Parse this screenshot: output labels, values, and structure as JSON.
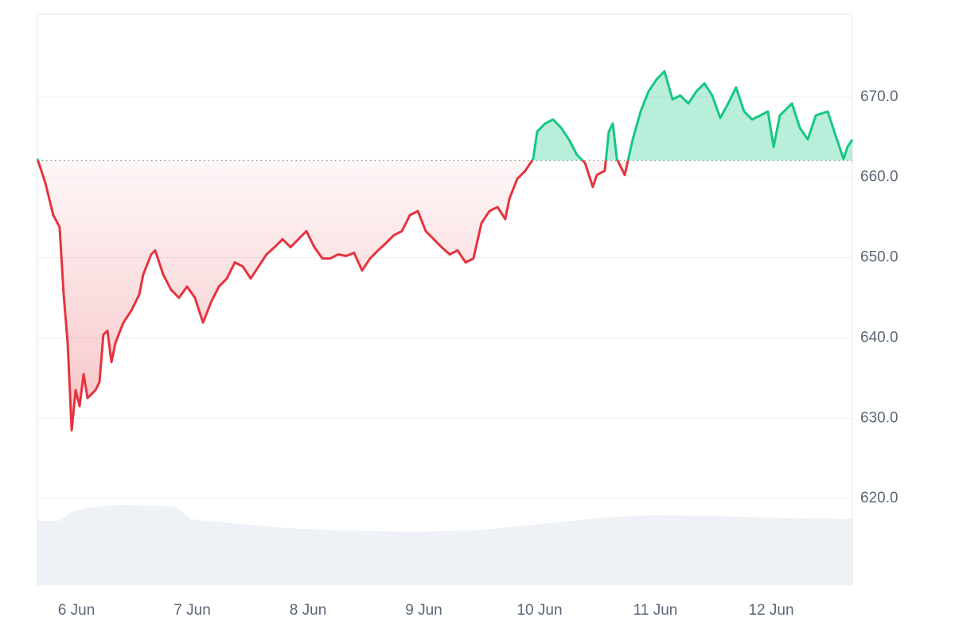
{
  "chart_data": {
    "type": "line",
    "x": [
      5.663,
      5.732,
      5.8,
      5.855,
      5.89,
      5.924,
      5.959,
      5.993,
      6.027,
      6.062,
      6.096,
      6.165,
      6.199,
      6.233,
      6.268,
      6.302,
      6.337,
      6.405,
      6.474,
      6.543,
      6.577,
      6.646,
      6.68,
      6.749,
      6.818,
      6.886,
      6.955,
      7.024,
      7.093,
      7.161,
      7.23,
      7.299,
      7.368,
      7.436,
      7.505,
      7.574,
      7.642,
      7.711,
      7.78,
      7.849,
      7.917,
      7.986,
      8.055,
      8.124,
      8.192,
      8.261,
      8.33,
      8.398,
      8.467,
      8.536,
      8.605,
      8.673,
      8.742,
      8.811,
      8.88,
      8.948,
      9.017,
      9.086,
      9.154,
      9.223,
      9.292,
      9.361,
      9.429,
      9.498,
      9.567,
      9.636,
      9.704,
      9.739,
      9.807,
      9.876,
      9.945,
      9.979,
      10.048,
      10.117,
      10.185,
      10.254,
      10.323,
      10.392,
      10.46,
      10.495,
      10.563,
      10.598,
      10.632,
      10.667,
      10.735,
      10.804,
      10.873,
      10.941,
      11.01,
      11.079,
      11.148,
      11.216,
      11.285,
      11.354,
      11.423,
      11.491,
      11.56,
      11.629,
      11.697,
      11.766,
      11.835,
      11.904,
      11.972,
      12.021,
      12.075,
      12.179,
      12.247,
      12.316,
      12.385,
      12.488,
      12.557,
      12.625,
      12.66,
      12.701
    ],
    "values": [
      662.3,
      659.3,
      655.3,
      653.8,
      645.4,
      639.4,
      628.5,
      633.5,
      631.5,
      635.5,
      632.5,
      633.5,
      634.5,
      640.4,
      640.9,
      637.0,
      639.4,
      641.9,
      643.4,
      645.4,
      647.9,
      650.4,
      650.9,
      647.9,
      646.0,
      645.0,
      646.4,
      645.0,
      641.9,
      644.4,
      646.4,
      647.4,
      649.4,
      648.9,
      647.4,
      648.9,
      650.4,
      651.3,
      652.3,
      651.3,
      652.3,
      653.3,
      651.3,
      649.9,
      649.9,
      650.4,
      650.2,
      650.6,
      648.4,
      649.9,
      650.9,
      651.8,
      652.8,
      653.3,
      655.3,
      655.8,
      653.3,
      652.3,
      651.3,
      650.4,
      650.9,
      649.4,
      649.9,
      654.3,
      655.8,
      656.3,
      654.8,
      657.3,
      659.8,
      660.8,
      662.3,
      665.7,
      666.7,
      667.2,
      666.2,
      664.7,
      662.8,
      661.8,
      658.8,
      660.3,
      660.8,
      665.7,
      666.7,
      662.3,
      660.3,
      664.7,
      668.2,
      670.7,
      672.2,
      673.2,
      669.7,
      670.2,
      669.2,
      670.7,
      671.7,
      670.2,
      667.4,
      669.2,
      671.2,
      668.2,
      667.2,
      667.7,
      668.2,
      663.8,
      667.7,
      669.2,
      666.2,
      664.7,
      667.7,
      668.2,
      665.2,
      662.3,
      663.8,
      664.7
    ],
    "baseline": 662.1,
    "color_up": "#16c784",
    "color_down": "#e5343f",
    "xlim": [
      5.663,
      12.701
    ],
    "xticks": [
      {
        "value": 6,
        "label": "6 Jun"
      },
      {
        "value": 7,
        "label": "7 Jun"
      },
      {
        "value": 8,
        "label": "8 Jun"
      },
      {
        "value": 9,
        "label": "9 Jun"
      },
      {
        "value": 10,
        "label": "10 Jun"
      },
      {
        "value": 11,
        "label": "11 Jun"
      },
      {
        "value": 12,
        "label": "12 Jun"
      }
    ],
    "ylim": [
      609.2,
      680.3
    ],
    "yticks": [
      {
        "value": 620,
        "label": "620.0"
      },
      {
        "value": 630,
        "label": "630.0"
      },
      {
        "value": 640,
        "label": "640.0"
      },
      {
        "value": 650,
        "label": "650.0"
      },
      {
        "value": 660,
        "label": "660.0"
      },
      {
        "value": 670,
        "label": "670.0"
      }
    ],
    "grid": true
  }
}
